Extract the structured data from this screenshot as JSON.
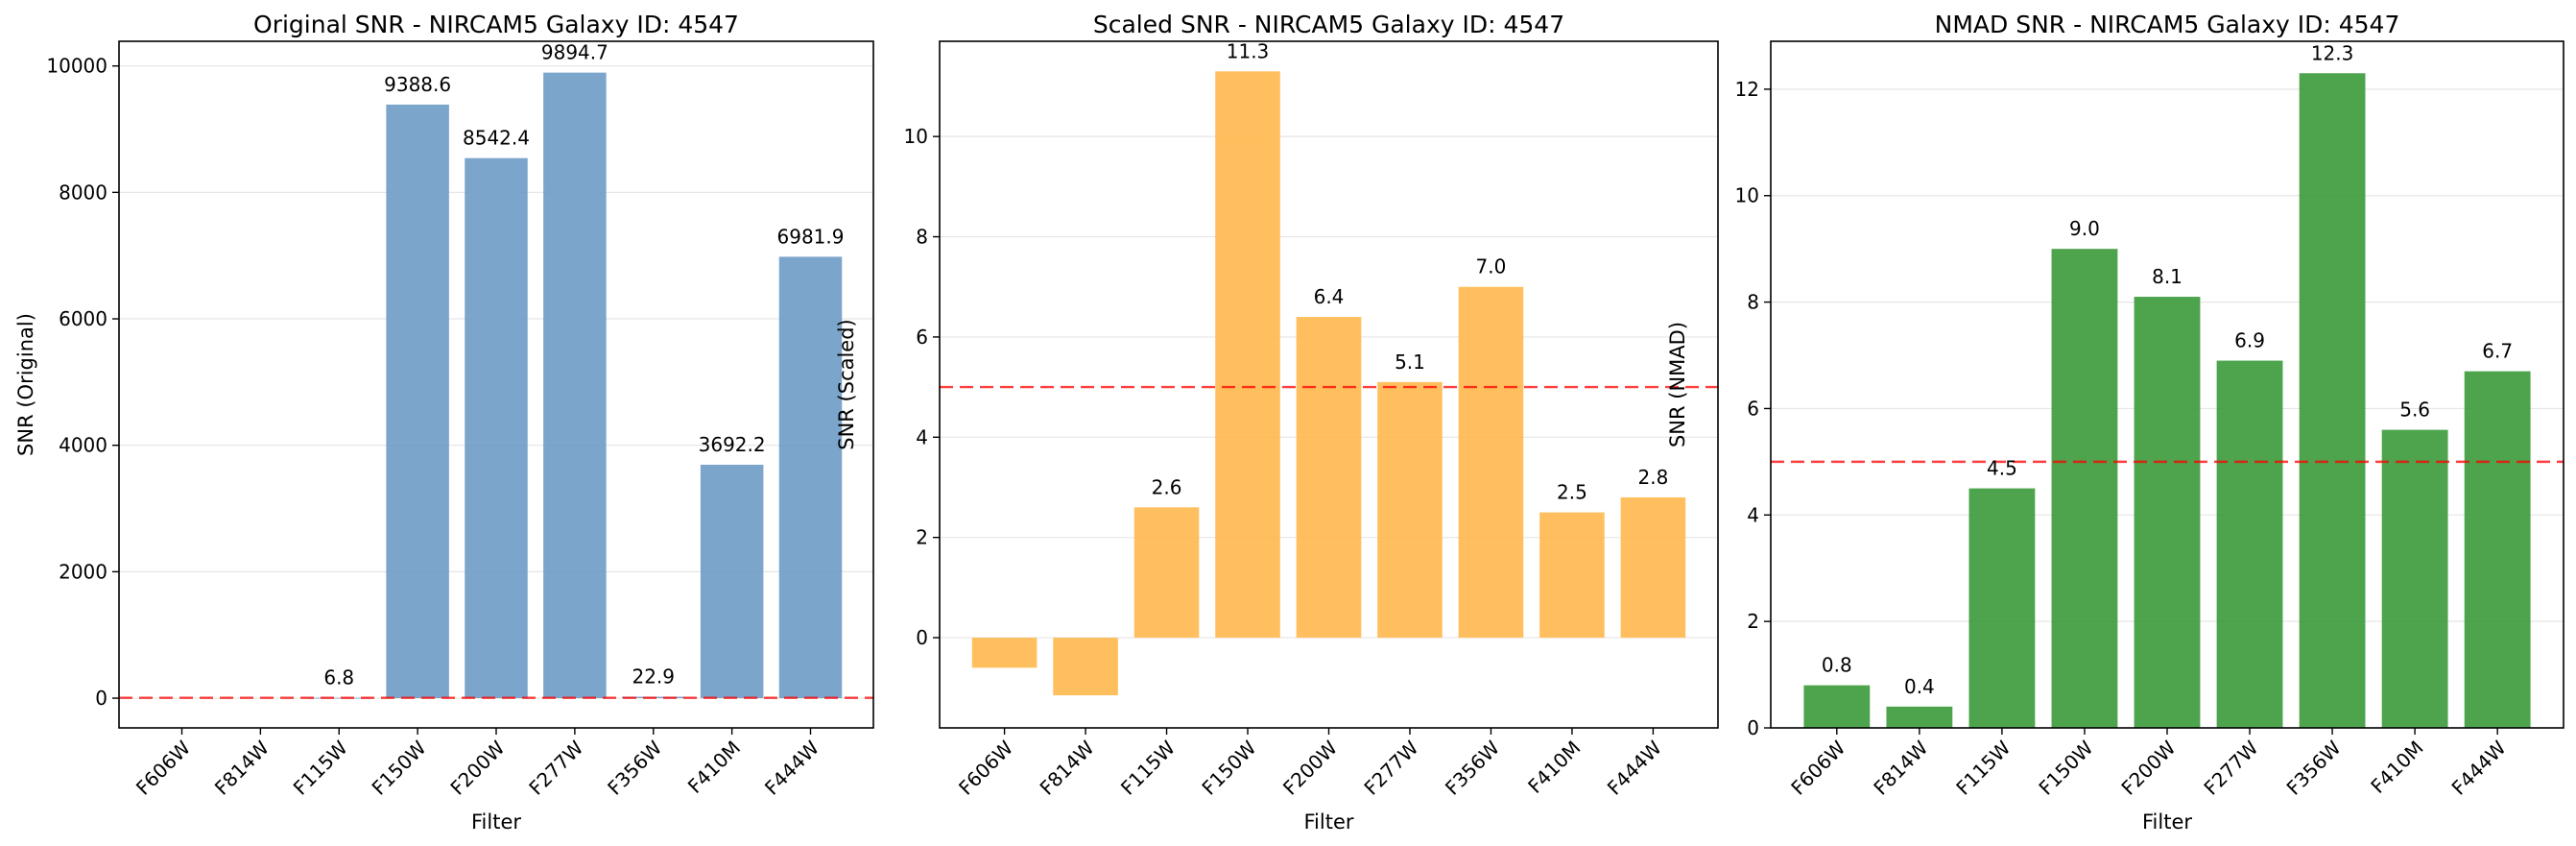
{
  "chart_data": [
    {
      "type": "bar",
      "title": "Original SNR - NIRCAM5 Galaxy ID: 4547",
      "xlabel": "Filter",
      "ylabel": "SNR (Original)",
      "categories": [
        "F606W",
        "F814W",
        "F115W",
        "F150W",
        "F200W",
        "F277W",
        "F356W",
        "F410M",
        "F444W"
      ],
      "values": [
        null,
        null,
        6.8,
        9388.6,
        8542.4,
        9894.7,
        22.9,
        3692.2,
        6981.9
      ],
      "labels": [
        "",
        "",
        "6.8",
        "9388.6",
        "8542.4",
        "9894.7",
        "22.9",
        "3692.2",
        "6981.9"
      ],
      "ylim": [
        -470,
        10390
      ],
      "yticks": [
        0,
        2000,
        4000,
        6000,
        8000,
        10000
      ],
      "threshold": 5,
      "color": "#6e9bc5",
      "grid": "y"
    },
    {
      "type": "bar",
      "title": "Scaled SNR - NIRCAM5 Galaxy ID: 4547",
      "xlabel": "Filter",
      "ylabel": "SNR (Scaled)",
      "categories": [
        "F606W",
        "F814W",
        "F115W",
        "F150W",
        "F200W",
        "F277W",
        "F356W",
        "F410M",
        "F444W"
      ],
      "values": [
        -0.6,
        -1.15,
        2.6,
        11.3,
        6.4,
        5.1,
        7.0,
        2.5,
        2.8
      ],
      "labels": [
        "",
        "",
        "2.6",
        "11.3",
        "6.4",
        "5.1",
        "7.0",
        "2.5",
        "2.8"
      ],
      "ylim": [
        -1.8,
        11.9
      ],
      "yticks": [
        0,
        2,
        4,
        6,
        8,
        10
      ],
      "threshold": 5,
      "color": "#ffb84d",
      "grid": "y"
    },
    {
      "type": "bar",
      "title": "NMAD SNR - NIRCAM5 Galaxy ID: 4547",
      "xlabel": "Filter",
      "ylabel": "SNR (NMAD)",
      "categories": [
        "F606W",
        "F814W",
        "F115W",
        "F150W",
        "F200W",
        "F277W",
        "F356W",
        "F410M",
        "F444W"
      ],
      "values": [
        0.8,
        0.4,
        4.5,
        9.0,
        8.1,
        6.9,
        12.3,
        5.6,
        6.7
      ],
      "labels": [
        "0.8",
        "0.4",
        "4.5",
        "9.0",
        "8.1",
        "6.9",
        "12.3",
        "5.6",
        "6.7"
      ],
      "ylim": [
        0,
        12.9
      ],
      "yticks": [
        0,
        2,
        4,
        6,
        8,
        10,
        12
      ],
      "threshold": 5,
      "color": "#3a9a3a",
      "grid": "y"
    }
  ]
}
